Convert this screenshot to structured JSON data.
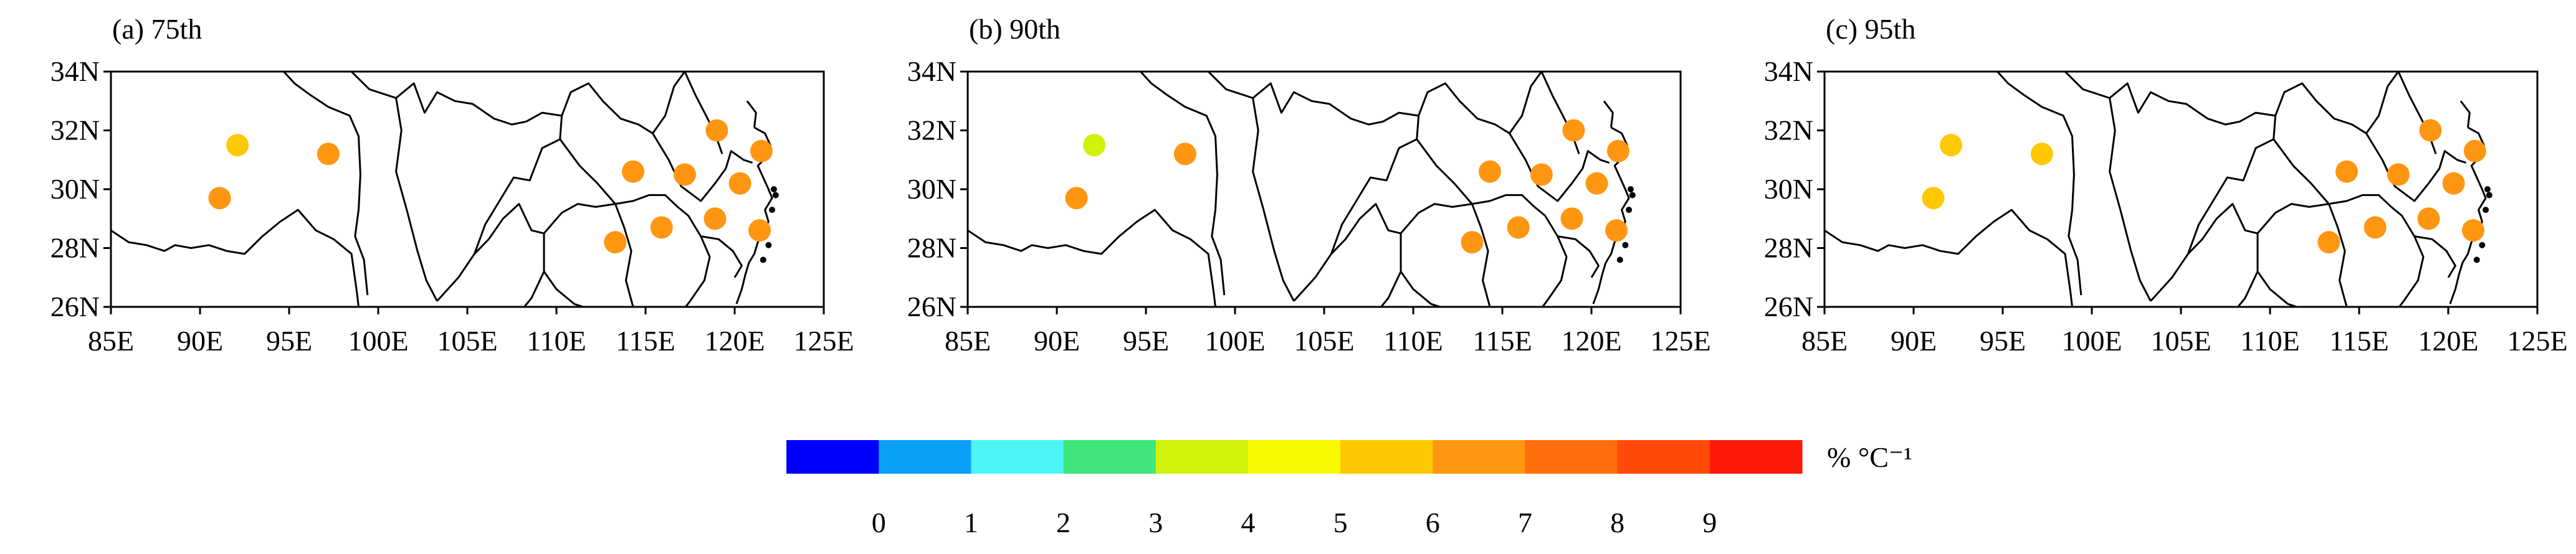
{
  "panels": [
    {
      "id": "a",
      "label": "(a) 75th",
      "stations": [
        {
          "lon": 92.1,
          "lat": 31.5,
          "value": 5.5
        },
        {
          "lon": 97.2,
          "lat": 31.2,
          "value": 6.6
        },
        {
          "lon": 91.1,
          "lat": 29.7,
          "value": 6.5
        },
        {
          "lon": 114.3,
          "lat": 30.6,
          "value": 6.5
        },
        {
          "lon": 117.2,
          "lat": 30.5,
          "value": 6.6
        },
        {
          "lon": 119.0,
          "lat": 32.0,
          "value": 6.6
        },
        {
          "lon": 120.3,
          "lat": 30.2,
          "value": 6.7
        },
        {
          "lon": 121.5,
          "lat": 31.3,
          "value": 6.8
        },
        {
          "lon": 113.3,
          "lat": 28.2,
          "value": 6.5
        },
        {
          "lon": 115.9,
          "lat": 28.7,
          "value": 6.6
        },
        {
          "lon": 118.9,
          "lat": 29.0,
          "value": 6.6
        },
        {
          "lon": 121.4,
          "lat": 28.6,
          "value": 6.5
        }
      ]
    },
    {
      "id": "b",
      "label": "(b) 90th",
      "stations": [
        {
          "lon": 92.1,
          "lat": 31.5,
          "value": 3.8
        },
        {
          "lon": 97.2,
          "lat": 31.2,
          "value": 6.6
        },
        {
          "lon": 91.1,
          "lat": 29.7,
          "value": 6.6
        },
        {
          "lon": 114.3,
          "lat": 30.6,
          "value": 6.5
        },
        {
          "lon": 117.2,
          "lat": 30.5,
          "value": 6.6
        },
        {
          "lon": 119.0,
          "lat": 32.0,
          "value": 6.6
        },
        {
          "lon": 120.3,
          "lat": 30.2,
          "value": 6.7
        },
        {
          "lon": 121.5,
          "lat": 31.3,
          "value": 6.8
        },
        {
          "lon": 113.3,
          "lat": 28.2,
          "value": 6.5
        },
        {
          "lon": 115.9,
          "lat": 28.7,
          "value": 6.6
        },
        {
          "lon": 118.9,
          "lat": 29.0,
          "value": 6.6
        },
        {
          "lon": 121.4,
          "lat": 28.6,
          "value": 6.5
        }
      ]
    },
    {
      "id": "c",
      "label": "(c) 95th",
      "stations": [
        {
          "lon": 92.1,
          "lat": 31.5,
          "value": 5.5
        },
        {
          "lon": 97.2,
          "lat": 31.2,
          "value": 5.5
        },
        {
          "lon": 91.1,
          "lat": 29.7,
          "value": 5.2
        },
        {
          "lon": 114.3,
          "lat": 30.6,
          "value": 6.5
        },
        {
          "lon": 117.2,
          "lat": 30.5,
          "value": 6.6
        },
        {
          "lon": 119.0,
          "lat": 32.0,
          "value": 6.6
        },
        {
          "lon": 120.3,
          "lat": 30.2,
          "value": 6.7
        },
        {
          "lon": 121.5,
          "lat": 31.3,
          "value": 6.8
        },
        {
          "lon": 113.3,
          "lat": 28.2,
          "value": 6.5
        },
        {
          "lon": 115.9,
          "lat": 28.7,
          "value": 6.6
        },
        {
          "lon": 118.9,
          "lat": 29.0,
          "value": 6.6
        },
        {
          "lon": 121.4,
          "lat": 28.6,
          "value": 6.5
        }
      ]
    }
  ],
  "map_extent": {
    "lon_min": 85,
    "lon_max": 125,
    "lat_min": 26,
    "lat_max": 34
  },
  "x_ticks": [
    "85E",
    "90E",
    "95E",
    "100E",
    "105E",
    "110E",
    "115E",
    "120E",
    "125E"
  ],
  "y_ticks": [
    "34N",
    "32N",
    "30N",
    "28N",
    "26N"
  ],
  "colorbar": {
    "colors": [
      "#0000ff",
      "#0aa0f8",
      "#4cf5f5",
      "#3ee57a",
      "#d1f00a",
      "#f8f800",
      "#ffc800",
      "#ff9612",
      "#ff6e0a",
      "#ff4a0a",
      "#ff1a0a"
    ],
    "labels": [
      "0",
      "1",
      "2",
      "3",
      "4",
      "5",
      "6",
      "7",
      "8",
      "9"
    ],
    "unit": "% °C⁻¹",
    "min": -1,
    "step": 1
  }
}
